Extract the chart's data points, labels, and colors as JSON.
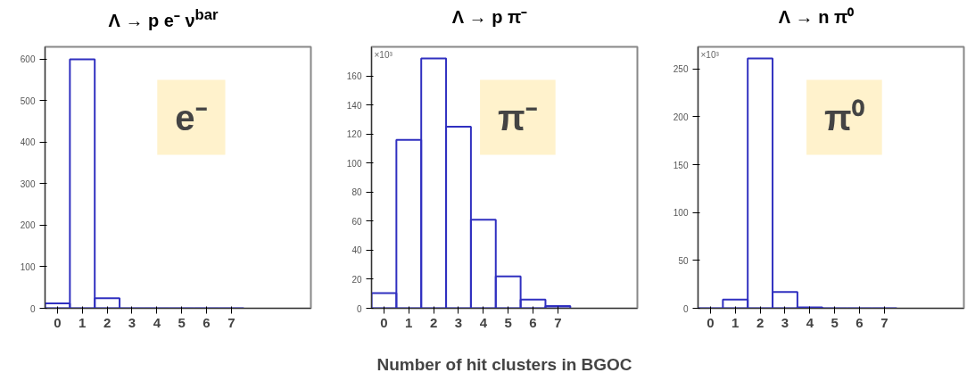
{
  "chart_data": [
    {
      "type": "histogram",
      "title": "Λ → p e⁻ ν$^{bar}$",
      "bins": [
        -0.5,
        0.5,
        1.5,
        2.5,
        3.5,
        4.5,
        5.5,
        6.5,
        7.5
      ],
      "values": [
        12,
        600,
        24,
        0,
        0,
        0,
        0,
        0
      ],
      "color": "#3030c0",
      "xlim": [
        -0.5,
        10.2
      ],
      "xticks": [
        0,
        1,
        2,
        3,
        4,
        5,
        6,
        7
      ],
      "ylim": [
        0,
        630
      ],
      "yticks": [
        0,
        100,
        200,
        300,
        400,
        500,
        600
      ],
      "grid": false,
      "annotations": [
        "e⁻"
      ]
    },
    {
      "type": "histogram",
      "title": "Λ → p π⁻",
      "xlabel": "Number of hit clusters in BGOC",
      "bins": [
        -0.5,
        0.5,
        1.5,
        2.5,
        3.5,
        4.5,
        5.5,
        6.5,
        7.5
      ],
      "values": [
        10.5,
        116,
        172,
        125,
        61,
        22,
        6,
        1.5
      ],
      "color": "#3030c0",
      "xlim": [
        -0.5,
        10.2
      ],
      "xticks": [
        0,
        1,
        2,
        3,
        4,
        5,
        6,
        7
      ],
      "ylim": [
        0,
        180
      ],
      "yticks": [
        0,
        20,
        40,
        60,
        80,
        100,
        120,
        140,
        160
      ],
      "grid": false,
      "annotations": [
        "π⁻",
        "×10³"
      ]
    },
    {
      "type": "histogram",
      "title": "Λ → n π⁰",
      "bins": [
        -0.5,
        0.5,
        1.5,
        2.5,
        3.5,
        4.5,
        5.5,
        6.5,
        7.5
      ],
      "values": [
        0,
        9,
        261,
        17,
        1,
        0,
        0,
        0
      ],
      "color": "#3030c0",
      "xlim": [
        -0.5,
        10.2
      ],
      "xticks": [
        0,
        1,
        2,
        3,
        4,
        5,
        6,
        7
      ],
      "ylim": [
        0,
        273
      ],
      "yticks": [
        0,
        50,
        100,
        150,
        200,
        250
      ],
      "grid": false,
      "annotations": [
        "π⁰",
        "×10³"
      ]
    }
  ]
}
